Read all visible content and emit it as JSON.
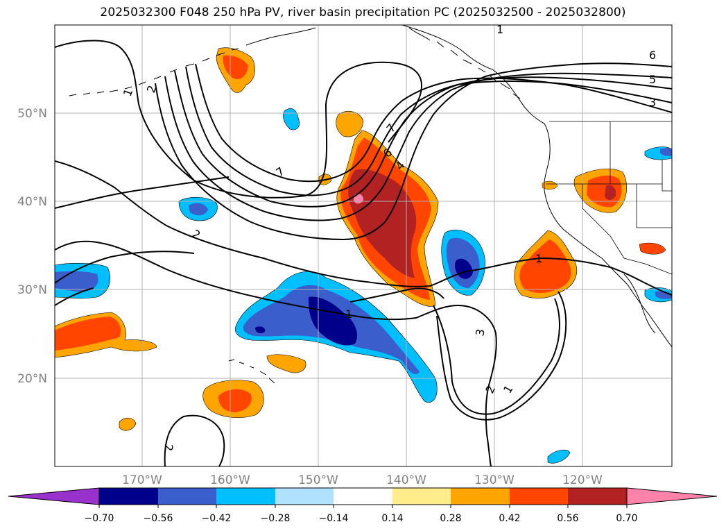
{
  "title": "2025032300 F048 250 hPa PV, river basin precipitation PC (2025032500 - 2025032800)",
  "map": {
    "lon_range": [
      -180,
      -110
    ],
    "lat_range": [
      10,
      60
    ],
    "lat_ticks": [
      {
        "value": 50,
        "label": "50°N"
      },
      {
        "value": 40,
        "label": "40°N"
      },
      {
        "value": 30,
        "label": "30°N"
      },
      {
        "value": 20,
        "label": "20°N"
      }
    ],
    "lon_ticks": [
      {
        "value": -170,
        "label": "170°W"
      },
      {
        "value": -160,
        "label": "160°W"
      },
      {
        "value": -150,
        "label": "150°W"
      },
      {
        "value": -140,
        "label": "140°W"
      },
      {
        "value": -130,
        "label": "130°W"
      },
      {
        "value": -120,
        "label": "120°W"
      }
    ],
    "gridlines": true,
    "contour_labels": [
      "1",
      "2",
      "1",
      "2",
      "7",
      "2",
      "1",
      "7",
      "6",
      "4",
      "1",
      "6",
      "5",
      "3",
      "3",
      "2",
      "1",
      "1",
      "3",
      "1"
    ]
  },
  "colorbar": {
    "ticks": [
      "−0.70",
      "−0.56",
      "−0.42",
      "−0.28",
      "−0.14",
      "0.14",
      "0.28",
      "0.42",
      "0.56",
      "0.70"
    ],
    "colors": [
      "#9932cc",
      "#00008b",
      "#3a5fcd",
      "#00bfff",
      "#b0e2ff",
      "#ffffff",
      "#ffec8b",
      "#ffa500",
      "#ff4500",
      "#b22222",
      "#ff82ab"
    ]
  }
}
